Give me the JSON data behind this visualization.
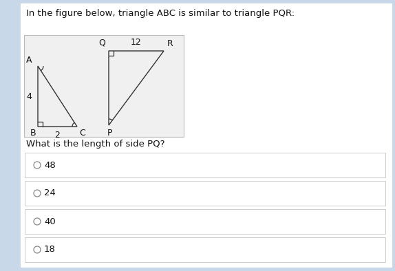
{
  "title": "In the figure below, triangle ABC is similar to triangle PQR:",
  "question": "What is the length of side PQ?",
  "choices": [
    "48",
    "24",
    "40",
    "18"
  ],
  "bg_color": "#c8d8e8",
  "panel_color": "#ffffff",
  "diagram_box_color": "#f0f0f0",
  "line_color": "#333333",
  "title_fontsize": 9.5,
  "question_fontsize": 9.5,
  "choice_fontsize": 9.5,
  "triangle_abc": {
    "label_A": "A",
    "label_B": "B",
    "label_C": "C",
    "side_AB": "4",
    "side_BC": "2"
  },
  "triangle_pqr": {
    "label_P": "P",
    "label_Q": "Q",
    "label_R": "R",
    "side_QR": "12"
  }
}
